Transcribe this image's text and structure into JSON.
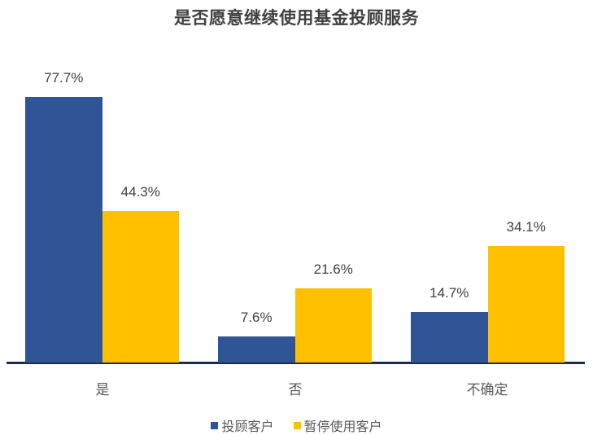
{
  "chart_data": {
    "type": "bar",
    "title": "是否愿意继续使用基金投顾服务",
    "categories": [
      "是",
      "否",
      "不确定"
    ],
    "series": [
      {
        "name": "投顾客户",
        "color": "#2F5597",
        "values": [
          77.7,
          7.6,
          14.7
        ],
        "labels": [
          "77.7%",
          "7.6%",
          "14.7%"
        ]
      },
      {
        "name": "暂停使用客户",
        "color": "#FFC000",
        "values": [
          44.3,
          21.6,
          34.1
        ],
        "labels": [
          "44.3%",
          "21.6%",
          "34.1%"
        ]
      }
    ],
    "xlabel": "",
    "ylabel": "",
    "unit": "%",
    "grid": false,
    "y_axis_visible": false,
    "data_labels": true,
    "legend_position": "bottom"
  }
}
